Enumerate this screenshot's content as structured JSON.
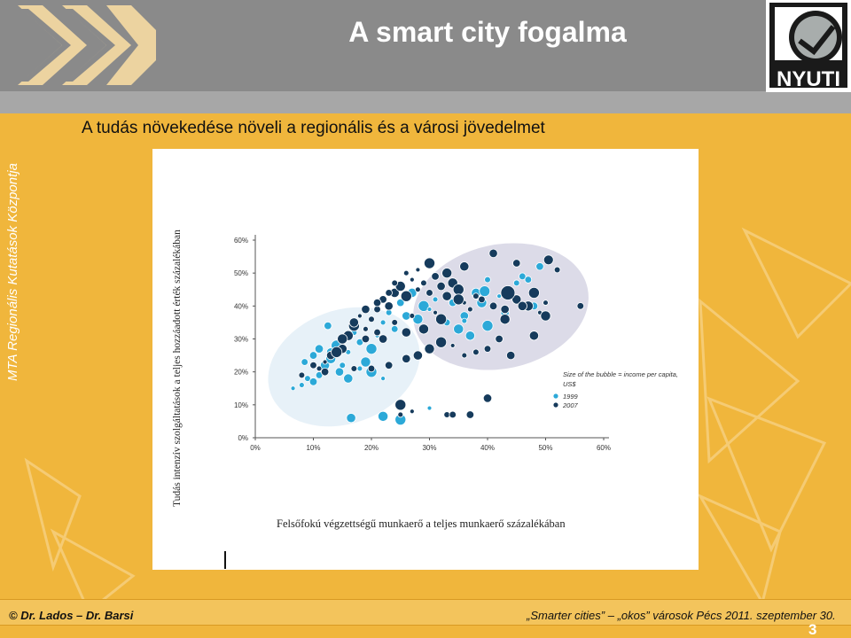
{
  "slide": {
    "title": "A smart city fogalma",
    "subtitle": "A tudás növekedése növeli a regionális és a városi jövedelmet",
    "side_text": "MTA Regionális Kutatások Központja",
    "logo_right_text": "NYUTI",
    "footer_left": "© Dr. Lados – Dr. Barsi",
    "footer_right": "„Smarter cities” – „okos” városok Pécs 2011. szeptember 30.",
    "page_number": "3"
  },
  "colors": {
    "background": "#f0b63c",
    "header": "#8a8a8a",
    "series_1999": "#2ca9d8",
    "series_2007": "#163b5c"
  },
  "chart_data": {
    "type": "scatter",
    "title": "",
    "xlabel": "Felsőfokú végzettségű munkaerő a teljes munkaerő százalékában",
    "ylabel": "Tudás intenzív szolgáltatások a teljes hozzáadott érték százalékában",
    "xlim": [
      0,
      60
    ],
    "ylim": [
      0,
      60
    ],
    "x_ticks": [
      "0%",
      "10%",
      "20%",
      "30%",
      "40%",
      "50%",
      "60%"
    ],
    "y_ticks": [
      "0%",
      "10%",
      "20%",
      "30%",
      "40%",
      "50%",
      "60%"
    ],
    "legend_note": "Size of the bubble = income per capita, US$",
    "legend_position": "right",
    "series": [
      {
        "name": "1999",
        "points": [
          [
            6.5,
            15
          ],
          [
            8,
            16
          ],
          [
            9,
            18
          ],
          [
            8.5,
            23
          ],
          [
            10,
            25
          ],
          [
            11,
            27
          ],
          [
            12,
            22
          ],
          [
            13,
            24
          ],
          [
            14,
            28
          ],
          [
            15,
            30
          ],
          [
            16,
            26
          ],
          [
            17,
            32
          ],
          [
            18,
            29
          ],
          [
            12.5,
            34
          ],
          [
            14.5,
            20
          ],
          [
            16,
            18
          ],
          [
            19,
            23
          ],
          [
            20,
            27
          ],
          [
            21,
            31
          ],
          [
            22,
            35
          ],
          [
            23,
            38
          ],
          [
            24,
            33
          ],
          [
            25,
            41
          ],
          [
            26,
            37
          ],
          [
            27,
            44
          ],
          [
            28,
            36
          ],
          [
            29,
            40
          ],
          [
            30,
            39
          ],
          [
            31,
            42
          ],
          [
            32,
            46
          ],
          [
            33,
            35
          ],
          [
            34,
            41
          ],
          [
            36,
            37
          ],
          [
            38,
            44
          ],
          [
            39,
            41
          ],
          [
            40,
            34
          ],
          [
            42,
            43
          ],
          [
            44,
            45
          ],
          [
            45,
            47
          ],
          [
            46,
            49
          ],
          [
            48,
            40
          ],
          [
            43,
            38
          ],
          [
            37,
            31
          ],
          [
            35,
            33
          ],
          [
            20,
            20
          ],
          [
            22,
            18
          ],
          [
            18,
            21
          ],
          [
            15,
            22
          ],
          [
            11,
            19
          ],
          [
            10,
            17
          ],
          [
            13,
            26
          ],
          [
            16.5,
            6
          ],
          [
            22,
            6.5
          ],
          [
            25,
            5.5
          ],
          [
            30,
            9
          ],
          [
            36,
            35.5
          ],
          [
            40,
            48
          ],
          [
            47,
            48
          ],
          [
            49,
            52
          ]
        ]
      },
      {
        "name": "2007",
        "points": [
          [
            8,
            19
          ],
          [
            10,
            22
          ],
          [
            12,
            20
          ],
          [
            13,
            25
          ],
          [
            15,
            27
          ],
          [
            16,
            31
          ],
          [
            17,
            34
          ],
          [
            18,
            37
          ],
          [
            19,
            33
          ],
          [
            20,
            36
          ],
          [
            21,
            39
          ],
          [
            22,
            42
          ],
          [
            23,
            40
          ],
          [
            24,
            44
          ],
          [
            25,
            46
          ],
          [
            26,
            43
          ],
          [
            27,
            48
          ],
          [
            28,
            45
          ],
          [
            29,
            47
          ],
          [
            30,
            44
          ],
          [
            31,
            49
          ],
          [
            32,
            46
          ],
          [
            33,
            43
          ],
          [
            34,
            47
          ],
          [
            35,
            45
          ],
          [
            36,
            41
          ],
          [
            37,
            39
          ],
          [
            38,
            43
          ],
          [
            39,
            42
          ],
          [
            41,
            40
          ],
          [
            43,
            39
          ],
          [
            45,
            42
          ],
          [
            47,
            40
          ],
          [
            48,
            44
          ],
          [
            49,
            38
          ],
          [
            50,
            41
          ],
          [
            52,
            51
          ],
          [
            56,
            40
          ],
          [
            45,
            53
          ],
          [
            41,
            56
          ],
          [
            36,
            52
          ],
          [
            33,
            50
          ],
          [
            30,
            53
          ],
          [
            28,
            51
          ],
          [
            26,
            50
          ],
          [
            24,
            47
          ],
          [
            23,
            44
          ],
          [
            21,
            41
          ],
          [
            19,
            39
          ],
          [
            17,
            35
          ],
          [
            15,
            30
          ],
          [
            14,
            26
          ],
          [
            12,
            23
          ],
          [
            11,
            21
          ],
          [
            17,
            21
          ],
          [
            20,
            21
          ],
          [
            23,
            22
          ],
          [
            26,
            24
          ],
          [
            28,
            25
          ],
          [
            30,
            27
          ],
          [
            32,
            29
          ],
          [
            34,
            28
          ],
          [
            36,
            25
          ],
          [
            38,
            26
          ],
          [
            40,
            27
          ],
          [
            42,
            30
          ],
          [
            44,
            25
          ],
          [
            48,
            31
          ],
          [
            50,
            37
          ],
          [
            25,
            10
          ],
          [
            27,
            8
          ],
          [
            25,
            7
          ],
          [
            33,
            7
          ],
          [
            34,
            7
          ],
          [
            37,
            7
          ],
          [
            40,
            12
          ],
          [
            46,
            40
          ],
          [
            43,
            36
          ],
          [
            35,
            42
          ],
          [
            31,
            38
          ],
          [
            27,
            37
          ],
          [
            24,
            35
          ],
          [
            21,
            32
          ],
          [
            19,
            30
          ],
          [
            22,
            30
          ],
          [
            26,
            32
          ],
          [
            29,
            33
          ],
          [
            32,
            36
          ]
        ]
      }
    ]
  }
}
